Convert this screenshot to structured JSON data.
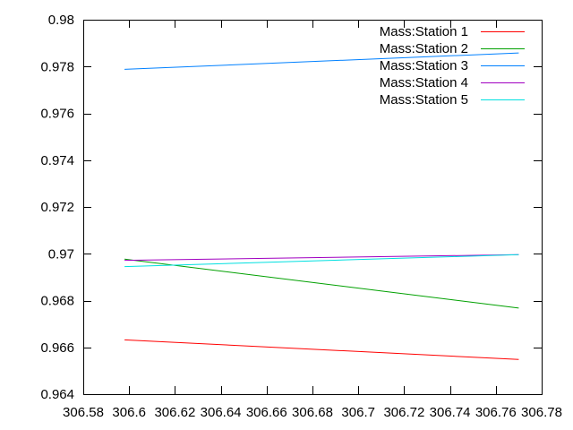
{
  "chart_data": {
    "type": "line",
    "title": "",
    "xlabel": "",
    "ylabel": "",
    "xlim": [
      306.58,
      306.78
    ],
    "ylim": [
      0.964,
      0.98
    ],
    "xticks": [
      306.58,
      306.6,
      306.62,
      306.64,
      306.66,
      306.68,
      306.7,
      306.72,
      306.74,
      306.76,
      306.78
    ],
    "xtick_labels": [
      "306.58",
      "306.6",
      "306.62",
      "306.64",
      "306.66",
      "306.68",
      "306.7",
      "306.72",
      "306.74",
      "306.76",
      "306.78"
    ],
    "yticks": [
      0.964,
      0.966,
      0.968,
      0.97,
      0.972,
      0.974,
      0.976,
      0.978,
      0.98
    ],
    "ytick_labels": [
      "0.964",
      "0.966",
      "0.968",
      "0.97",
      "0.972",
      "0.974",
      "0.976",
      "0.978",
      "0.98"
    ],
    "grid": false,
    "legend_position": "top-right",
    "series": [
      {
        "name": "Mass:Station 1",
        "color": "#ff0000",
        "x": [
          306.598,
          306.77
        ],
        "y": [
          0.96632,
          0.96548
        ]
      },
      {
        "name": "Mass:Station 2",
        "color": "#00a000",
        "x": [
          306.598,
          306.77
        ],
        "y": [
          0.96977,
          0.96768
        ]
      },
      {
        "name": "Mass:Station 3",
        "color": "#0080ff",
        "x": [
          306.598,
          306.77
        ],
        "y": [
          0.97788,
          0.97858
        ]
      },
      {
        "name": "Mass:Station 4",
        "color": "#a000c0",
        "x": [
          306.598,
          306.77
        ],
        "y": [
          0.96972,
          0.96996
        ]
      },
      {
        "name": "Mass:Station 5",
        "color": "#00e0e0",
        "x": [
          306.598,
          306.77
        ],
        "y": [
          0.96945,
          0.96996
        ]
      }
    ]
  }
}
